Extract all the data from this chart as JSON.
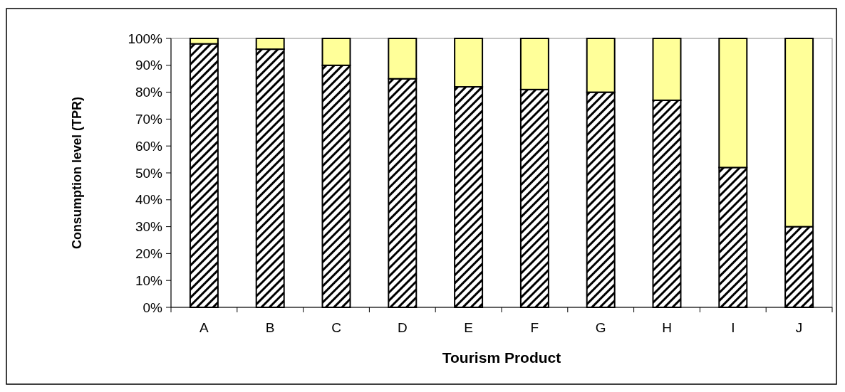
{
  "chart_data": {
    "type": "bar",
    "stacked": true,
    "xlabel": "Tourism Product",
    "ylabel": "Consumption level (TPR)",
    "categories": [
      "A",
      "B",
      "C",
      "D",
      "E",
      "F",
      "G",
      "H",
      "I",
      "J"
    ],
    "series": [
      {
        "color": "#000000",
        "values": [
          98,
          96,
          90,
          85,
          82,
          81,
          80,
          77,
          52,
          30
        ]
      },
      {
        "color": "#ffff99",
        "values": [
          2,
          4,
          10,
          15,
          18,
          19,
          20,
          23,
          48,
          70
        ]
      }
    ],
    "ylim": [
      0,
      100
    ],
    "yticks": [
      {
        "value": 0,
        "label": "0%"
      },
      {
        "value": 10,
        "label": "10%"
      },
      {
        "value": 20,
        "label": "20%"
      },
      {
        "value": 30,
        "label": "30%"
      },
      {
        "value": 40,
        "label": "40%"
      },
      {
        "value": 50,
        "label": "50%"
      },
      {
        "value": 60,
        "label": "60%"
      },
      {
        "value": 70,
        "label": "70%"
      },
      {
        "value": 80,
        "label": "80%"
      },
      {
        "value": 90,
        "label": "90%"
      },
      {
        "value": 100,
        "label": "100%"
      }
    ],
    "grid": false
  }
}
